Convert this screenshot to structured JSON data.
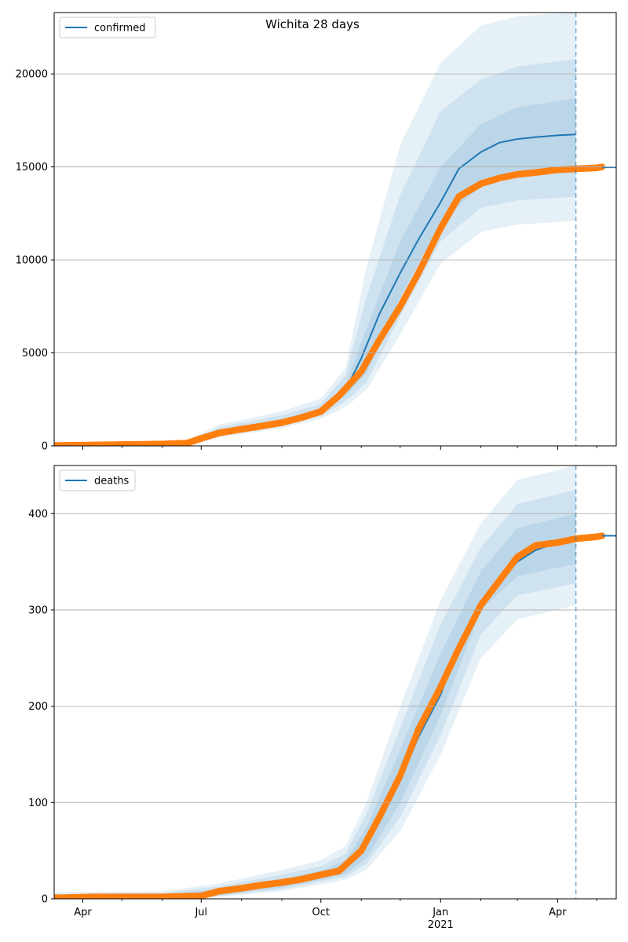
{
  "figure": {
    "title": "Wichita 28 days"
  },
  "colors": {
    "model": "#1f77b4",
    "observed": "#ff7f0e",
    "band": "#1f77b4",
    "grid": "#b0b0b0",
    "axis": "#000000"
  },
  "x_ticks": {
    "labels": [
      "Apr",
      "Jul",
      "Oct",
      "Jan",
      "Apr"
    ],
    "dates": [
      "2020-04-01",
      "2020-07-01",
      "2020-10-01",
      "2021-01-01",
      "2021-04-01"
    ],
    "year_label": "2021"
  },
  "chart_data": [
    {
      "type": "line",
      "title": "Wichita 28 days",
      "xlim": [
        "2020-03-10",
        "2021-05-16"
      ],
      "ylim": [
        0,
        23300
      ],
      "y_ticks": [
        "0",
        "5000",
        "10000",
        "15000",
        "20000"
      ],
      "y_tick_values": [
        0,
        5000,
        10000,
        15000,
        20000
      ],
      "grid": "horizontal",
      "legend": {
        "entries": [
          "confirmed"
        ],
        "placement": "top-left"
      },
      "forecast_start": "2021-04-15",
      "series": [
        {
          "name": "confirmed",
          "kind": "model",
          "x": [
            "2020-10-20",
            "2020-11-01",
            "2020-11-15",
            "2020-12-01",
            "2020-12-15",
            "2021-01-01",
            "2021-01-15",
            "2021-02-01",
            "2021-02-15",
            "2021-03-01",
            "2021-03-15",
            "2021-04-01",
            "2021-04-15"
          ],
          "y": [
            3000,
            4700,
            7100,
            9300,
            11100,
            13100,
            14900,
            15800,
            16300,
            16500,
            16600,
            16700,
            16750
          ]
        },
        {
          "name": "confirmed observed",
          "kind": "observed",
          "x": [
            "2020-03-10",
            "2020-04-01",
            "2020-05-01",
            "2020-06-01",
            "2020-06-20",
            "2020-07-01",
            "2020-07-15",
            "2020-08-01",
            "2020-08-15",
            "2020-09-01",
            "2020-09-15",
            "2020-10-01",
            "2020-10-15",
            "2020-11-01",
            "2020-11-15",
            "2020-12-01",
            "2020-12-15",
            "2021-01-01",
            "2021-01-15",
            "2021-02-01",
            "2021-02-15",
            "2021-03-01",
            "2021-03-15",
            "2021-04-01",
            "2021-04-15",
            "2021-05-01",
            "2021-05-05"
          ],
          "y": [
            20,
            40,
            70,
            100,
            150,
            400,
            700,
            900,
            1050,
            1250,
            1500,
            1850,
            2700,
            4000,
            5700,
            7500,
            9300,
            11700,
            13400,
            14100,
            14400,
            14600,
            14700,
            14850,
            14900,
            14950,
            15000
          ]
        },
        {
          "name": "confirmed tail",
          "kind": "tail",
          "x": [
            "2021-05-05",
            "2021-05-16"
          ],
          "y": [
            14980,
            14980
          ]
        }
      ],
      "bands": [
        {
          "x": [
            "2020-03-10",
            "2020-06-20",
            "2020-07-15",
            "2020-09-01",
            "2020-10-01",
            "2020-10-20",
            "2020-11-05",
            "2020-12-01",
            "2021-01-01",
            "2021-02-01",
            "2021-03-01",
            "2021-04-15"
          ],
          "lower": [
            0,
            0,
            450,
            950,
            1450,
            2100,
            3000,
            6000,
            9800,
            11500,
            11900,
            12100
          ],
          "upper": [
            0,
            300,
            1150,
            1850,
            2550,
            4200,
            9600,
            16200,
            20600,
            22600,
            23100,
            23300
          ]
        },
        {
          "x": [
            "2020-03-10",
            "2020-06-20",
            "2020-07-15",
            "2020-09-01",
            "2020-10-01",
            "2020-10-20",
            "2020-11-05",
            "2020-12-01",
            "2021-01-01",
            "2021-02-01",
            "2021-03-01",
            "2021-04-15"
          ],
          "lower": [
            0,
            0,
            520,
            1080,
            1600,
            2400,
            3400,
            7000,
            11000,
            12800,
            13200,
            13400
          ],
          "upper": [
            0,
            250,
            1000,
            1650,
            2250,
            3800,
            8000,
            13500,
            18000,
            19700,
            20400,
            20800
          ]
        },
        {
          "x": [
            "2020-03-10",
            "2020-06-20",
            "2020-07-15",
            "2020-09-01",
            "2020-10-01",
            "2020-10-20",
            "2020-11-05",
            "2020-12-01",
            "2021-01-01",
            "2021-02-01",
            "2021-03-01",
            "2021-04-15"
          ],
          "lower": [
            0,
            0,
            600,
            1200,
            1750,
            2700,
            3900,
            8000,
            12000,
            14000,
            14500,
            14700
          ],
          "upper": [
            0,
            200,
            850,
            1450,
            2000,
            3300,
            6300,
            11000,
            15000,
            17300,
            18200,
            18700
          ]
        }
      ]
    },
    {
      "type": "line",
      "ylim": [
        0,
        450
      ],
      "xlim": [
        "2020-03-10",
        "2021-05-16"
      ],
      "y_ticks": [
        "0",
        "100",
        "200",
        "300",
        "400"
      ],
      "y_tick_values": [
        0,
        100,
        200,
        300,
        400
      ],
      "grid": "horizontal",
      "legend": {
        "entries": [
          "deaths"
        ],
        "placement": "top-left"
      },
      "forecast_start": "2021-04-15",
      "series": [
        {
          "name": "deaths",
          "kind": "model",
          "x": [
            "2020-10-20",
            "2020-11-01",
            "2020-11-15",
            "2020-12-01",
            "2020-12-15",
            "2021-01-01",
            "2021-01-15",
            "2021-02-01",
            "2021-02-15",
            "2021-03-01",
            "2021-03-15",
            "2021-04-01",
            "2021-04-15"
          ],
          "y": [
            33,
            48,
            80,
            125,
            168,
            212,
            262,
            306,
            330,
            350,
            362,
            370,
            373
          ]
        },
        {
          "name": "deaths observed",
          "kind": "observed",
          "x": [
            "2020-03-10",
            "2020-04-10",
            "2020-05-01",
            "2020-06-01",
            "2020-07-01",
            "2020-07-15",
            "2020-08-01",
            "2020-08-15",
            "2020-09-01",
            "2020-09-15",
            "2020-10-01",
            "2020-10-15",
            "2020-11-01",
            "2020-11-15",
            "2020-12-01",
            "2020-12-15",
            "2021-01-01",
            "2021-01-15",
            "2021-02-01",
            "2021-02-15",
            "2021-03-01",
            "2021-03-15",
            "2021-04-01",
            "2021-04-15",
            "2021-05-01",
            "2021-05-05"
          ],
          "y": [
            1,
            2,
            2,
            2,
            3,
            8,
            11,
            14,
            17,
            20,
            25,
            29,
            50,
            85,
            128,
            176,
            220,
            260,
            305,
            330,
            355,
            367,
            370,
            374,
            376,
            377
          ]
        },
        {
          "name": "deaths tail",
          "kind": "tail",
          "x": [
            "2021-05-05",
            "2021-05-16"
          ],
          "y": [
            377,
            377
          ]
        }
      ],
      "bands": [
        {
          "x": [
            "2020-03-10",
            "2020-06-01",
            "2020-07-15",
            "2020-09-01",
            "2020-10-01",
            "2020-10-20",
            "2020-11-05",
            "2020-12-01",
            "2021-01-01",
            "2021-02-01",
            "2021-03-01",
            "2021-04-15"
          ],
          "lower": [
            0,
            0,
            2,
            8,
            15,
            20,
            30,
            70,
            150,
            250,
            290,
            305
          ],
          "upper": [
            7,
            8,
            16,
            30,
            40,
            55,
            100,
            200,
            310,
            390,
            435,
            450
          ]
        },
        {
          "x": [
            "2020-03-10",
            "2020-06-01",
            "2020-07-15",
            "2020-09-01",
            "2020-10-01",
            "2020-10-20",
            "2020-11-05",
            "2020-12-01",
            "2021-01-01",
            "2021-02-01",
            "2021-03-01",
            "2021-04-15"
          ],
          "lower": [
            0,
            0,
            3,
            10,
            18,
            23,
            36,
            85,
            170,
            275,
            315,
            328
          ],
          "upper": [
            5,
            6,
            13,
            25,
            34,
            47,
            88,
            178,
            285,
            365,
            410,
            425
          ]
        },
        {
          "x": [
            "2020-03-10",
            "2020-06-01",
            "2020-07-15",
            "2020-09-01",
            "2020-10-01",
            "2020-10-20",
            "2020-11-05",
            "2020-12-01",
            "2021-01-01",
            "2021-02-01",
            "2021-03-01",
            "2021-04-15"
          ],
          "lower": [
            0,
            0,
            4,
            12,
            20,
            26,
            42,
            100,
            190,
            300,
            335,
            348
          ],
          "upper": [
            3,
            4,
            10,
            21,
            29,
            40,
            74,
            155,
            255,
            340,
            385,
            400
          ]
        }
      ]
    }
  ]
}
